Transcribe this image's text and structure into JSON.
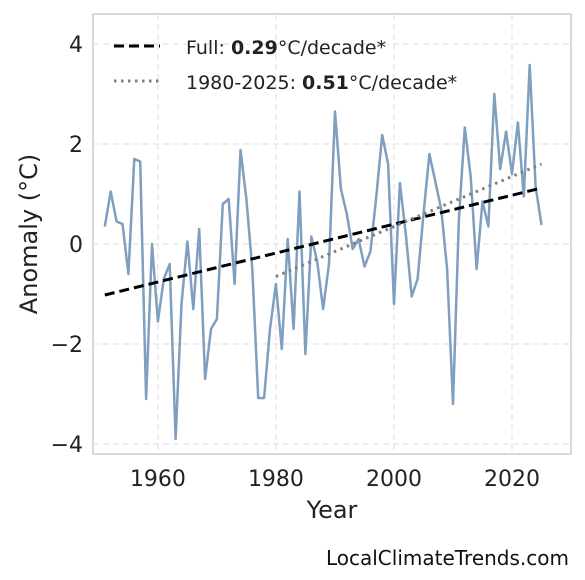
{
  "chart_data": {
    "type": "line",
    "xlabel": "Year",
    "ylabel": "Anomaly (°C)",
    "xlim": [
      1949,
      2030
    ],
    "ylim": [
      -4.2,
      4.6
    ],
    "xticks": [
      1960,
      1980,
      2000,
      2020
    ],
    "yticks": [
      -4,
      -2,
      0,
      2,
      4
    ],
    "ytick_labels": [
      "−4",
      "−2",
      "0",
      "2",
      "4"
    ],
    "grid": true,
    "legend_position": "top-left",
    "series": [
      {
        "color": "#7f9fc0",
        "x": [
          1951,
          1952,
          1953,
          1954,
          1955,
          1956,
          1957,
          1958,
          1959,
          1960,
          1961,
          1962,
          1963,
          1964,
          1965,
          1966,
          1967,
          1968,
          1969,
          1970,
          1971,
          1972,
          1973,
          1974,
          1975,
          1976,
          1977,
          1978,
          1979,
          1980,
          1981,
          1982,
          1983,
          1984,
          1985,
          1986,
          1987,
          1988,
          1989,
          1990,
          1991,
          1992,
          1993,
          1994,
          1995,
          1996,
          1997,
          1998,
          1999,
          2000,
          2001,
          2002,
          2003,
          2004,
          2005,
          2006,
          2007,
          2008,
          2009,
          2010,
          2011,
          2012,
          2013,
          2014,
          2015,
          2016,
          2017,
          2018,
          2019,
          2020,
          2021,
          2022,
          2023,
          2024,
          2025
        ],
        "y": [
          0.35,
          1.05,
          0.45,
          0.4,
          -0.6,
          1.7,
          1.65,
          -3.1,
          0.0,
          -1.55,
          -0.7,
          -0.4,
          -3.9,
          -1.2,
          0.05,
          -1.3,
          0.3,
          -2.7,
          -1.7,
          -1.5,
          0.8,
          0.9,
          -0.8,
          1.88,
          0.9,
          -0.5,
          -3.08,
          -3.08,
          -1.7,
          -0.8,
          -2.1,
          0.1,
          -1.7,
          1.05,
          -2.2,
          0.15,
          -0.35,
          -1.3,
          -0.4,
          2.65,
          1.1,
          0.6,
          -0.1,
          0.1,
          -0.45,
          -0.15,
          0.95,
          2.18,
          1.6,
          -1.2,
          1.22,
          0.2,
          -1.05,
          -0.7,
          0.6,
          1.8,
          1.25,
          0.7,
          -0.5,
          -3.2,
          0.5,
          2.33,
          1.35,
          -0.5,
          0.85,
          0.35,
          3.0,
          1.5,
          2.25,
          1.4,
          2.43,
          0.95,
          3.58,
          1.15,
          0.38
        ]
      },
      {
        "name_prefix": "Full: ",
        "name_value": "0.29",
        "name_suffix": "°C/decade*",
        "style": "dashed",
        "color": "#000000",
        "x": [
          1951,
          2025
        ],
        "y": [
          -1.02,
          1.12
        ]
      },
      {
        "name_prefix": "1980-2025: ",
        "name_value": "0.51",
        "name_suffix": "°C/decade*",
        "style": "dotted",
        "color": "#7f7f7f",
        "x": [
          1980,
          2025
        ],
        "y": [
          -0.65,
          1.6
        ]
      }
    ]
  },
  "credit": "LocalClimateTrends.com"
}
